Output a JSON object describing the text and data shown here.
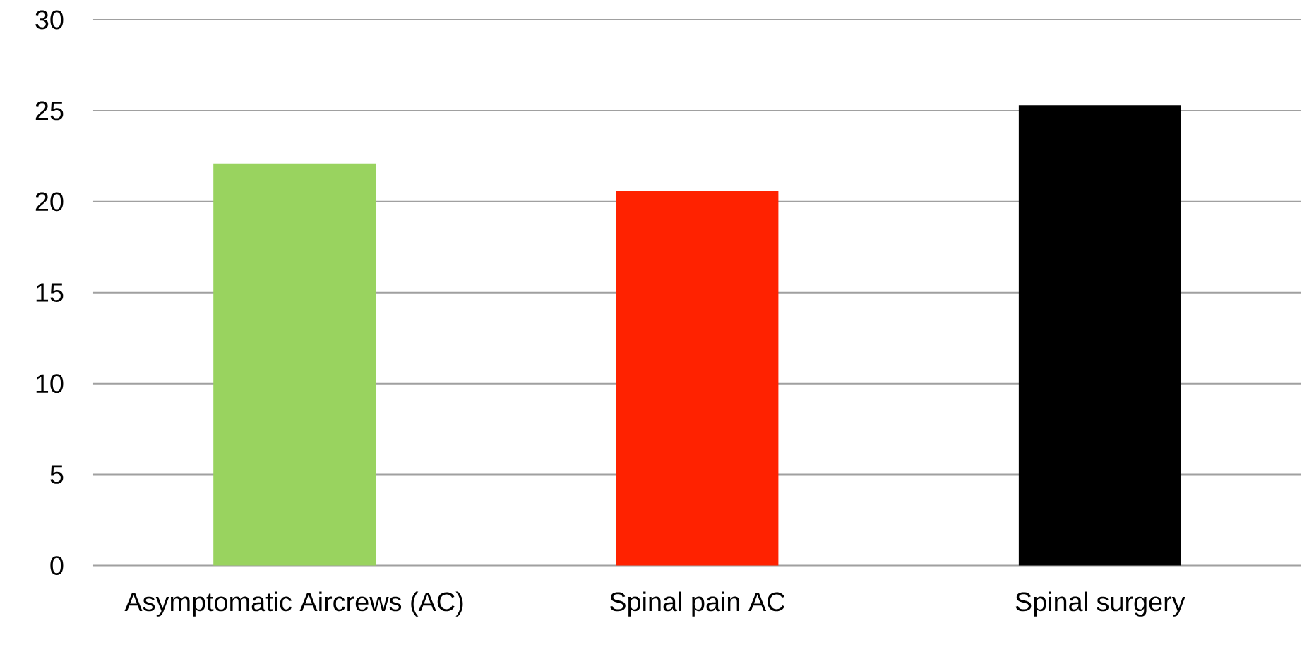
{
  "chart_data": {
    "type": "bar",
    "categories": [
      "Asymptomatic Aircrews (AC)",
      "Spinal pain AC",
      "Spinal surgery"
    ],
    "values": [
      22.1,
      20.6,
      25.3
    ],
    "colors": [
      "#99d35f",
      "#ff2200",
      "#000000"
    ],
    "ylim": [
      0,
      30
    ],
    "yticks": [
      0,
      5,
      10,
      15,
      20,
      25,
      30
    ],
    "grid": "y"
  }
}
